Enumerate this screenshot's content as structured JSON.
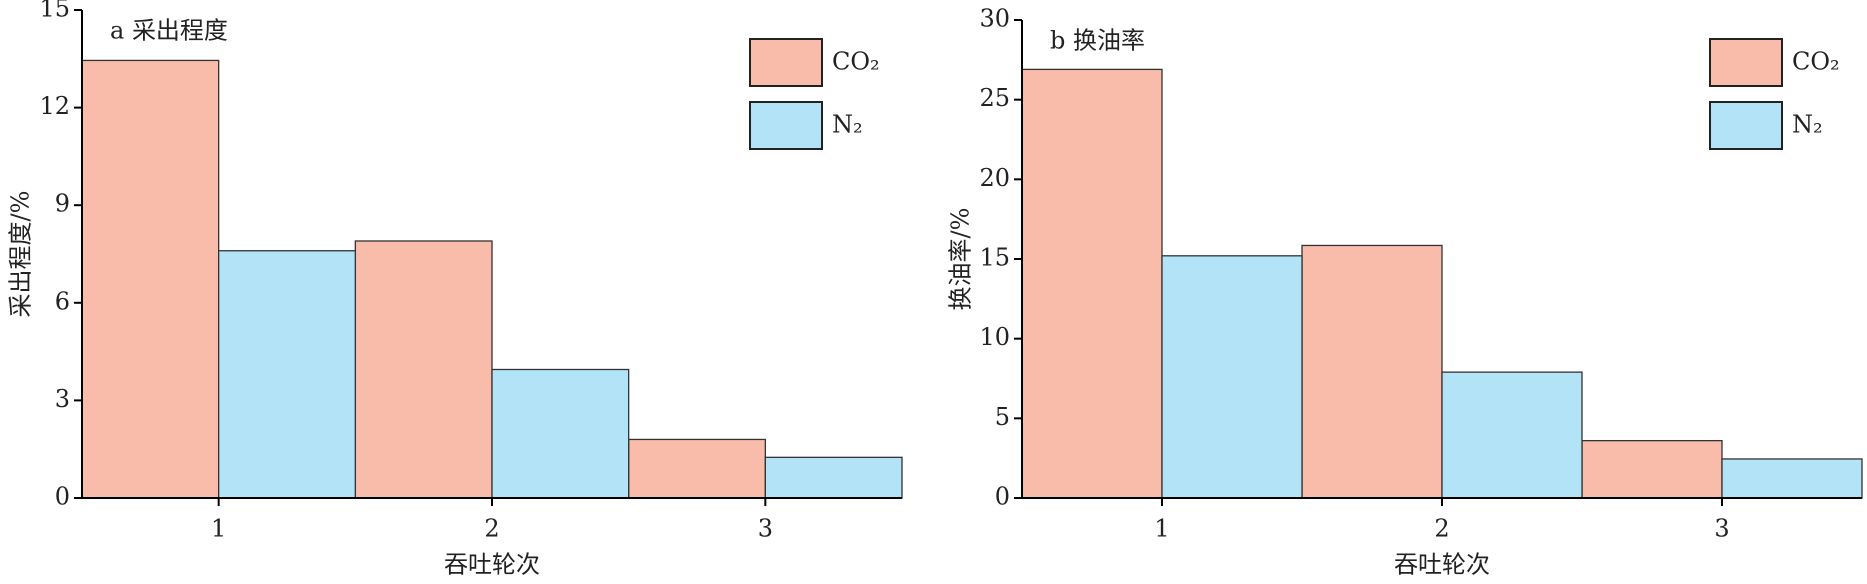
{
  "chart_data": [
    {
      "type": "bar",
      "title": "a 采出程度",
      "xlabel": "吞吐轮次",
      "ylabel": "采出程度/%",
      "categories": [
        "1",
        "2",
        "3"
      ],
      "series": [
        {
          "name": "CO₂",
          "color": "#f9bcaa",
          "values": [
            13.45,
            7.9,
            1.8
          ]
        },
        {
          "name": "N₂",
          "color": "#b3e3f7",
          "values": [
            7.6,
            3.95,
            1.25
          ]
        }
      ],
      "ylim": [
        0,
        15
      ],
      "yticks": [
        0,
        3,
        6,
        9,
        12,
        15
      ],
      "legend": "upper right"
    },
    {
      "type": "bar",
      "title": "b 换油率",
      "xlabel": "吞吐轮次",
      "ylabel": "换油率/%",
      "categories": [
        "1",
        "2",
        "3"
      ],
      "series": [
        {
          "name": "CO₂",
          "color": "#f9bcaa",
          "values": [
            26.9,
            15.85,
            3.6
          ]
        },
        {
          "name": "N₂",
          "color": "#b3e3f7",
          "values": [
            15.2,
            7.9,
            2.45
          ]
        }
      ],
      "ylim": [
        0,
        30
      ],
      "yticks": [
        0,
        5,
        10,
        15,
        20,
        25,
        30
      ],
      "legend": "upper right"
    }
  ]
}
